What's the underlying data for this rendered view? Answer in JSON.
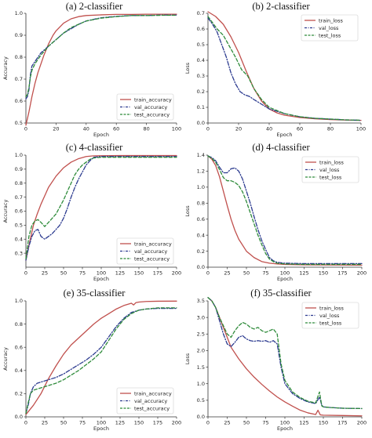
{
  "chart_data": [
    {
      "type": "line",
      "title": "(a) 2-classifier",
      "xlabel": "Epoch",
      "ylabel": "Accuracy",
      "xlim": [
        0,
        100
      ],
      "ylim": [
        0.5,
        1.0
      ],
      "xticks": [
        0,
        20,
        40,
        60,
        80,
        100
      ],
      "yticks": [
        0.5,
        0.6,
        0.7,
        0.8,
        0.9,
        1.0
      ],
      "legend_position": "lower-right",
      "series": [
        {
          "name": "train_accuracy",
          "color": "#c0504d",
          "dash": "solid",
          "x": [
            0,
            2,
            4,
            6,
            8,
            10,
            12,
            15,
            18,
            20,
            25,
            30,
            35,
            40,
            50,
            60,
            70,
            80,
            90,
            100
          ],
          "y": [
            0.49,
            0.55,
            0.62,
            0.68,
            0.73,
            0.77,
            0.81,
            0.86,
            0.9,
            0.92,
            0.955,
            0.975,
            0.985,
            0.99,
            0.993,
            0.995,
            0.995,
            0.996,
            0.996,
            0.996
          ]
        },
        {
          "name": "val_accuracy",
          "color": "#2b3a8f",
          "dash": "dashdot",
          "x": [
            0,
            1,
            2,
            3,
            4,
            6,
            8,
            10,
            15,
            20,
            25,
            30,
            35,
            40,
            50,
            60,
            70,
            80,
            90,
            100
          ],
          "y": [
            0.61,
            0.62,
            0.65,
            0.72,
            0.76,
            0.78,
            0.8,
            0.82,
            0.85,
            0.88,
            0.91,
            0.93,
            0.95,
            0.965,
            0.98,
            0.986,
            0.99,
            0.99,
            0.992,
            0.992
          ]
        },
        {
          "name": "test_accuracy",
          "color": "#2e8b3a",
          "dash": "dashed",
          "x": [
            0,
            1,
            2,
            3,
            4,
            6,
            8,
            10,
            15,
            20,
            25,
            30,
            35,
            40,
            50,
            60,
            70,
            80,
            90,
            100
          ],
          "y": [
            0.62,
            0.63,
            0.66,
            0.71,
            0.74,
            0.77,
            0.79,
            0.81,
            0.85,
            0.88,
            0.91,
            0.935,
            0.95,
            0.965,
            0.978,
            0.985,
            0.99,
            0.99,
            0.991,
            0.991
          ]
        }
      ]
    },
    {
      "type": "line",
      "title": "(b) 2-classifier",
      "xlabel": "Epoch",
      "ylabel": "Loss",
      "xlim": [
        0,
        100
      ],
      "ylim": [
        0,
        0.7
      ],
      "xticks": [
        0,
        20,
        40,
        60,
        80,
        100
      ],
      "yticks": [
        0.0,
        0.1,
        0.2,
        0.3,
        0.4,
        0.5,
        0.6,
        0.7
      ],
      "legend_position": "upper-right",
      "series": [
        {
          "name": "train_loss",
          "color": "#c0504d",
          "dash": "solid",
          "x": [
            0,
            5,
            10,
            15,
            20,
            25,
            30,
            35,
            40,
            45,
            50,
            60,
            70,
            80,
            90,
            100
          ],
          "y": [
            0.71,
            0.68,
            0.63,
            0.55,
            0.45,
            0.33,
            0.22,
            0.14,
            0.09,
            0.065,
            0.05,
            0.035,
            0.027,
            0.022,
            0.019,
            0.017
          ]
        },
        {
          "name": "val_loss",
          "color": "#2b3a8f",
          "dash": "dashdot",
          "x": [
            0,
            3,
            6,
            9,
            12,
            15,
            18,
            21,
            24,
            27,
            30,
            35,
            40,
            50,
            60,
            70,
            80,
            90,
            100
          ],
          "y": [
            0.67,
            0.63,
            0.58,
            0.5,
            0.42,
            0.32,
            0.25,
            0.2,
            0.18,
            0.17,
            0.15,
            0.12,
            0.09,
            0.06,
            0.04,
            0.03,
            0.025,
            0.02,
            0.017
          ]
        },
        {
          "name": "test_loss",
          "color": "#2e8b3a",
          "dash": "dashed",
          "x": [
            0,
            3,
            6,
            10,
            14,
            18,
            22,
            26,
            30,
            35,
            40,
            50,
            60,
            70,
            80,
            90,
            100
          ],
          "y": [
            0.68,
            0.64,
            0.6,
            0.56,
            0.49,
            0.42,
            0.34,
            0.3,
            0.22,
            0.15,
            0.1,
            0.06,
            0.04,
            0.03,
            0.025,
            0.02,
            0.018
          ]
        }
      ]
    },
    {
      "type": "line",
      "title": "(c) 4-classifier",
      "xlabel": "Epoch",
      "ylabel": "Accuracy",
      "xlim": [
        0,
        200
      ],
      "ylim": [
        0.2,
        1.0
      ],
      "xticks": [
        0,
        25,
        50,
        75,
        100,
        125,
        150,
        175,
        200
      ],
      "yticks": [
        0.3,
        0.4,
        0.5,
        0.6,
        0.7,
        0.8,
        0.9,
        1.0
      ],
      "legend_position": "lower-right",
      "series": [
        {
          "name": "train_accuracy",
          "color": "#c0504d",
          "dash": "solid",
          "x": [
            0,
            5,
            10,
            15,
            20,
            25,
            30,
            40,
            50,
            60,
            70,
            80,
            90,
            100,
            125,
            150,
            175,
            200
          ],
          "y": [
            0.25,
            0.38,
            0.5,
            0.58,
            0.65,
            0.71,
            0.77,
            0.85,
            0.91,
            0.95,
            0.975,
            0.99,
            0.995,
            0.996,
            0.997,
            0.997,
            0.997,
            0.997
          ]
        },
        {
          "name": "val_accuracy",
          "color": "#2b3a8f",
          "dash": "dashdot",
          "x": [
            0,
            4,
            8,
            12,
            16,
            20,
            25,
            30,
            35,
            40,
            45,
            50,
            55,
            60,
            65,
            70,
            75,
            80,
            85,
            90,
            100,
            125,
            150,
            175,
            200
          ],
          "y": [
            0.25,
            0.35,
            0.42,
            0.46,
            0.47,
            0.42,
            0.4,
            0.42,
            0.44,
            0.47,
            0.5,
            0.55,
            0.62,
            0.7,
            0.77,
            0.83,
            0.88,
            0.93,
            0.96,
            0.985,
            0.99,
            0.99,
            0.99,
            0.99,
            0.99
          ]
        },
        {
          "name": "test_accuracy",
          "color": "#2e8b3a",
          "dash": "dashed",
          "x": [
            0,
            4,
            8,
            12,
            16,
            20,
            25,
            30,
            35,
            40,
            45,
            50,
            55,
            60,
            65,
            70,
            75,
            80,
            85,
            90,
            100,
            125,
            150,
            175,
            200
          ],
          "y": [
            0.26,
            0.42,
            0.5,
            0.53,
            0.54,
            0.52,
            0.49,
            0.52,
            0.55,
            0.58,
            0.63,
            0.68,
            0.74,
            0.8,
            0.86,
            0.9,
            0.93,
            0.95,
            0.97,
            0.98,
            0.985,
            0.985,
            0.985,
            0.985,
            0.985
          ]
        }
      ]
    },
    {
      "type": "line",
      "title": "(d) 4-classifier",
      "xlabel": "Epoch",
      "ylabel": "Loss",
      "xlim": [
        0,
        200
      ],
      "ylim": [
        0,
        1.4
      ],
      "xticks": [
        0,
        25,
        50,
        75,
        100,
        125,
        150,
        175,
        200
      ],
      "yticks": [
        0.0,
        0.2,
        0.4,
        0.6,
        0.8,
        1.0,
        1.2,
        1.4
      ],
      "legend_position": "upper-right",
      "series": [
        {
          "name": "train_loss",
          "color": "#c0504d",
          "dash": "solid",
          "x": [
            0,
            5,
            10,
            15,
            20,
            25,
            30,
            35,
            40,
            50,
            60,
            70,
            80,
            90,
            100,
            125,
            150,
            175,
            200
          ],
          "y": [
            1.39,
            1.35,
            1.27,
            1.13,
            0.95,
            0.77,
            0.6,
            0.46,
            0.35,
            0.2,
            0.12,
            0.07,
            0.05,
            0.04,
            0.035,
            0.03,
            0.028,
            0.027,
            0.026
          ]
        },
        {
          "name": "val_loss",
          "color": "#2b3a8f",
          "dash": "dashdot",
          "x": [
            0,
            5,
            10,
            15,
            20,
            25,
            30,
            35,
            40,
            45,
            50,
            55,
            60,
            65,
            70,
            75,
            80,
            85,
            90,
            100,
            125,
            150,
            175,
            200
          ],
          "y": [
            1.39,
            1.37,
            1.33,
            1.25,
            1.18,
            1.18,
            1.23,
            1.24,
            1.2,
            1.1,
            0.95,
            0.8,
            0.63,
            0.47,
            0.33,
            0.22,
            0.12,
            0.08,
            0.06,
            0.05,
            0.045,
            0.045,
            0.045,
            0.045
          ]
        },
        {
          "name": "test_loss",
          "color": "#2e8b3a",
          "dash": "dashed",
          "x": [
            0,
            5,
            10,
            15,
            20,
            25,
            30,
            35,
            40,
            45,
            50,
            55,
            60,
            65,
            70,
            75,
            80,
            85,
            90,
            100,
            125,
            150,
            175,
            200
          ],
          "y": [
            1.39,
            1.36,
            1.31,
            1.22,
            1.12,
            1.08,
            1.08,
            1.06,
            1.02,
            0.94,
            0.82,
            0.68,
            0.54,
            0.4,
            0.28,
            0.17,
            0.1,
            0.07,
            0.05,
            0.04,
            0.035,
            0.035,
            0.035,
            0.035
          ]
        }
      ]
    },
    {
      "type": "line",
      "title": "(e) 35-classifier",
      "xlabel": "Epoch",
      "ylabel": "Accuracy",
      "xlim": [
        0,
        200
      ],
      "ylim": [
        0,
        1.0
      ],
      "xticks": [
        0,
        25,
        50,
        75,
        100,
        125,
        150,
        175,
        200
      ],
      "yticks": [
        0.0,
        0.2,
        0.4,
        0.6,
        0.8,
        1.0
      ],
      "legend_position": "lower-right",
      "series": [
        {
          "name": "train_accuracy",
          "color": "#c0504d",
          "dash": "solid",
          "x": [
            0,
            10,
            20,
            30,
            40,
            50,
            60,
            70,
            80,
            90,
            100,
            110,
            120,
            130,
            140,
            143,
            146,
            150,
            160,
            175,
            200
          ],
          "y": [
            0.02,
            0.1,
            0.2,
            0.33,
            0.44,
            0.54,
            0.62,
            0.68,
            0.74,
            0.8,
            0.85,
            0.89,
            0.93,
            0.96,
            0.98,
            0.965,
            0.985,
            0.99,
            0.995,
            0.997,
            0.998
          ]
        },
        {
          "name": "val_accuracy",
          "color": "#2b3a8f",
          "dash": "dashdot",
          "x": [
            0,
            3,
            6,
            10,
            15,
            20,
            25,
            30,
            40,
            50,
            60,
            70,
            80,
            90,
            100,
            110,
            120,
            130,
            140,
            150,
            160,
            175,
            200
          ],
          "y": [
            0.03,
            0.1,
            0.2,
            0.26,
            0.29,
            0.3,
            0.31,
            0.32,
            0.34,
            0.37,
            0.41,
            0.45,
            0.49,
            0.54,
            0.6,
            0.69,
            0.78,
            0.85,
            0.9,
            0.92,
            0.93,
            0.935,
            0.935
          ]
        },
        {
          "name": "test_accuracy",
          "color": "#2e8b3a",
          "dash": "dashed",
          "x": [
            0,
            3,
            6,
            10,
            15,
            20,
            25,
            30,
            40,
            50,
            60,
            70,
            80,
            90,
            100,
            110,
            120,
            130,
            140,
            150,
            160,
            175,
            200
          ],
          "y": [
            0.03,
            0.12,
            0.2,
            0.23,
            0.24,
            0.25,
            0.26,
            0.27,
            0.29,
            0.32,
            0.36,
            0.4,
            0.45,
            0.5,
            0.56,
            0.66,
            0.76,
            0.84,
            0.89,
            0.92,
            0.93,
            0.94,
            0.94
          ]
        }
      ]
    },
    {
      "type": "line",
      "title": "(f) 35-classifier",
      "xlabel": "Epoch",
      "ylabel": "Loss",
      "xlim": [
        0,
        200
      ],
      "ylim": [
        0,
        3.5
      ],
      "xticks": [
        0,
        25,
        50,
        75,
        100,
        125,
        150,
        175,
        200
      ],
      "yticks": [
        0.0,
        0.5,
        1.0,
        1.5,
        2.0,
        2.5,
        3.0,
        3.5
      ],
      "legend_position": "upper-right",
      "series": [
        {
          "name": "train_loss",
          "color": "#c0504d",
          "dash": "solid",
          "x": [
            0,
            5,
            10,
            15,
            20,
            25,
            30,
            40,
            50,
            60,
            70,
            80,
            90,
            100,
            110,
            120,
            130,
            140,
            143,
            146,
            150,
            175,
            200
          ],
          "y": [
            3.6,
            3.5,
            3.3,
            3.0,
            2.7,
            2.4,
            2.1,
            1.75,
            1.45,
            1.2,
            0.98,
            0.78,
            0.6,
            0.45,
            0.32,
            0.2,
            0.12,
            0.07,
            0.2,
            0.06,
            0.05,
            0.04,
            0.03
          ]
        },
        {
          "name": "val_loss",
          "color": "#2b3a8f",
          "dash": "dashdot",
          "x": [
            0,
            5,
            10,
            15,
            20,
            25,
            30,
            35,
            40,
            45,
            50,
            55,
            60,
            65,
            70,
            75,
            80,
            85,
            90,
            95,
            100,
            110,
            120,
            130,
            140,
            145,
            148,
            150,
            160,
            175,
            200
          ],
          "y": [
            3.6,
            3.5,
            3.3,
            2.9,
            2.5,
            2.2,
            2.12,
            2.25,
            2.4,
            2.45,
            2.35,
            2.3,
            2.28,
            2.3,
            2.28,
            2.3,
            2.25,
            2.3,
            2.2,
            1.5,
            1.0,
            0.7,
            0.55,
            0.45,
            0.4,
            0.6,
            0.35,
            0.3,
            0.28,
            0.26,
            0.25
          ]
        },
        {
          "name": "test_loss",
          "color": "#2e8b3a",
          "dash": "dashed",
          "x": [
            0,
            5,
            10,
            15,
            20,
            25,
            30,
            35,
            40,
            45,
            50,
            55,
            60,
            65,
            70,
            75,
            80,
            85,
            90,
            95,
            100,
            110,
            120,
            130,
            140,
            145,
            148,
            150,
            160,
            175,
            200
          ],
          "y": [
            3.6,
            3.5,
            3.3,
            3.0,
            2.75,
            2.5,
            2.4,
            2.6,
            2.75,
            2.85,
            2.8,
            2.7,
            2.65,
            2.7,
            2.6,
            2.55,
            2.6,
            2.65,
            2.5,
            1.6,
            1.1,
            0.75,
            0.58,
            0.47,
            0.42,
            0.75,
            0.33,
            0.3,
            0.28,
            0.26,
            0.25
          ]
        }
      ]
    }
  ]
}
